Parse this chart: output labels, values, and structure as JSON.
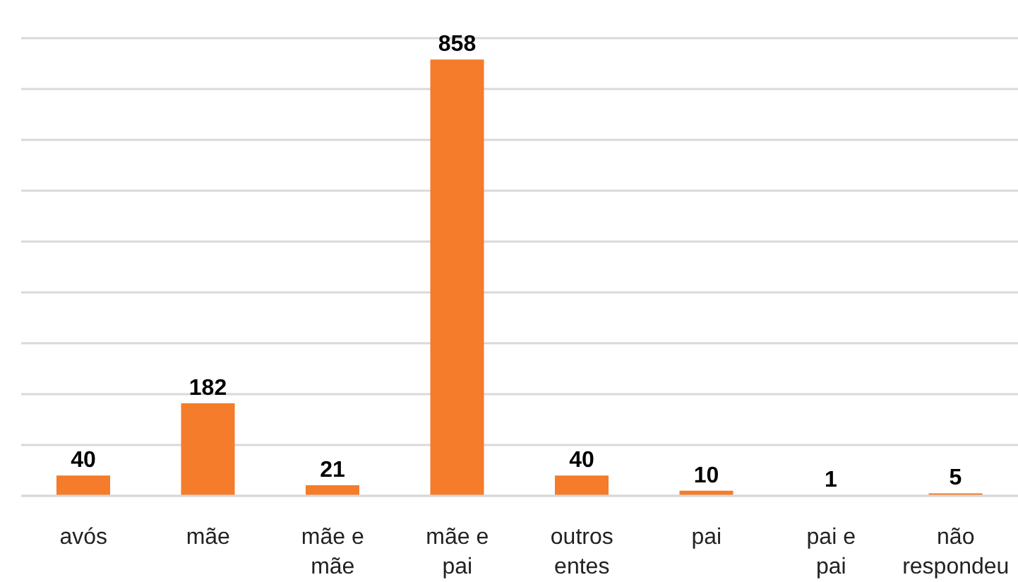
{
  "chart_data": {
    "type": "bar",
    "categories": [
      "avós",
      "mãe",
      "mãe e mãe",
      "mãe e pai",
      "outros entes",
      "pai",
      "pai e pai",
      "não respondeu"
    ],
    "values": [
      40,
      182,
      21,
      858,
      40,
      10,
      1,
      5
    ],
    "color": "#f47c2a",
    "ylim": [
      0,
      900
    ],
    "yticks": [
      {
        "value": 0,
        "label": null
      },
      {
        "value": 100,
        "label": null
      },
      {
        "value": 200,
        "label": null
      },
      {
        "value": 300,
        "label": null
      },
      {
        "value": 400,
        "label": null
      },
      {
        "value": 500,
        "label": null
      },
      {
        "value": 600,
        "label": null
      },
      {
        "value": 700,
        "label": null
      },
      {
        "value": 800,
        "label": null
      },
      {
        "value": 900,
        "label": null
      }
    ],
    "grid": "y",
    "data_labels": true,
    "tick_labels": "x"
  }
}
